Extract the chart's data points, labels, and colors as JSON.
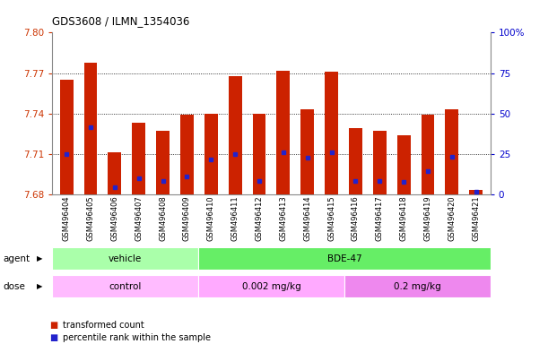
{
  "title": "GDS3608 / ILMN_1354036",
  "samples": [
    "GSM496404",
    "GSM496405",
    "GSM496406",
    "GSM496407",
    "GSM496408",
    "GSM496409",
    "GSM496410",
    "GSM496411",
    "GSM496412",
    "GSM496413",
    "GSM496414",
    "GSM496415",
    "GSM496416",
    "GSM496417",
    "GSM496418",
    "GSM496419",
    "GSM496420",
    "GSM496421"
  ],
  "bar_values": [
    7.765,
    7.778,
    7.711,
    7.733,
    7.727,
    7.739,
    7.74,
    7.768,
    7.74,
    7.772,
    7.743,
    7.771,
    7.729,
    7.727,
    7.724,
    7.739,
    7.743,
    7.683
  ],
  "blue_dot_values": [
    7.71,
    7.73,
    7.685,
    7.692,
    7.69,
    7.693,
    7.706,
    7.71,
    7.69,
    7.711,
    7.707,
    7.711,
    7.69,
    7.69,
    7.689,
    7.697,
    7.708,
    7.682
  ],
  "y_min": 7.68,
  "y_max": 7.8,
  "y_ticks": [
    7.68,
    7.71,
    7.74,
    7.77,
    7.8
  ],
  "right_y_ticks": [
    0,
    25,
    50,
    75,
    100
  ],
  "bar_color": "#cc2200",
  "dot_color": "#2222cc",
  "bar_bottom": 7.68,
  "agent_groups": [
    {
      "label": "vehicle",
      "start": 0,
      "end": 6,
      "color": "#aaffaa"
    },
    {
      "label": "BDE-47",
      "start": 6,
      "end": 18,
      "color": "#66ee66"
    }
  ],
  "dose_groups": [
    {
      "label": "control",
      "start": 0,
      "end": 6,
      "color": "#ffbbff"
    },
    {
      "label": "0.002 mg/kg",
      "start": 6,
      "end": 12,
      "color": "#ffaaff"
    },
    {
      "label": "0.2 mg/kg",
      "start": 12,
      "end": 18,
      "color": "#ee88ee"
    }
  ],
  "legend_items": [
    {
      "color": "#cc2200",
      "label": "transformed count"
    },
    {
      "color": "#2222cc",
      "label": "percentile rank within the sample"
    }
  ],
  "ylabel_left_color": "#cc3300",
  "ylabel_right_color": "#0000cc",
  "grid_lines": [
    7.71,
    7.74,
    7.77
  ],
  "plot_bg": "#ffffff",
  "fig_bg": "#ffffff"
}
